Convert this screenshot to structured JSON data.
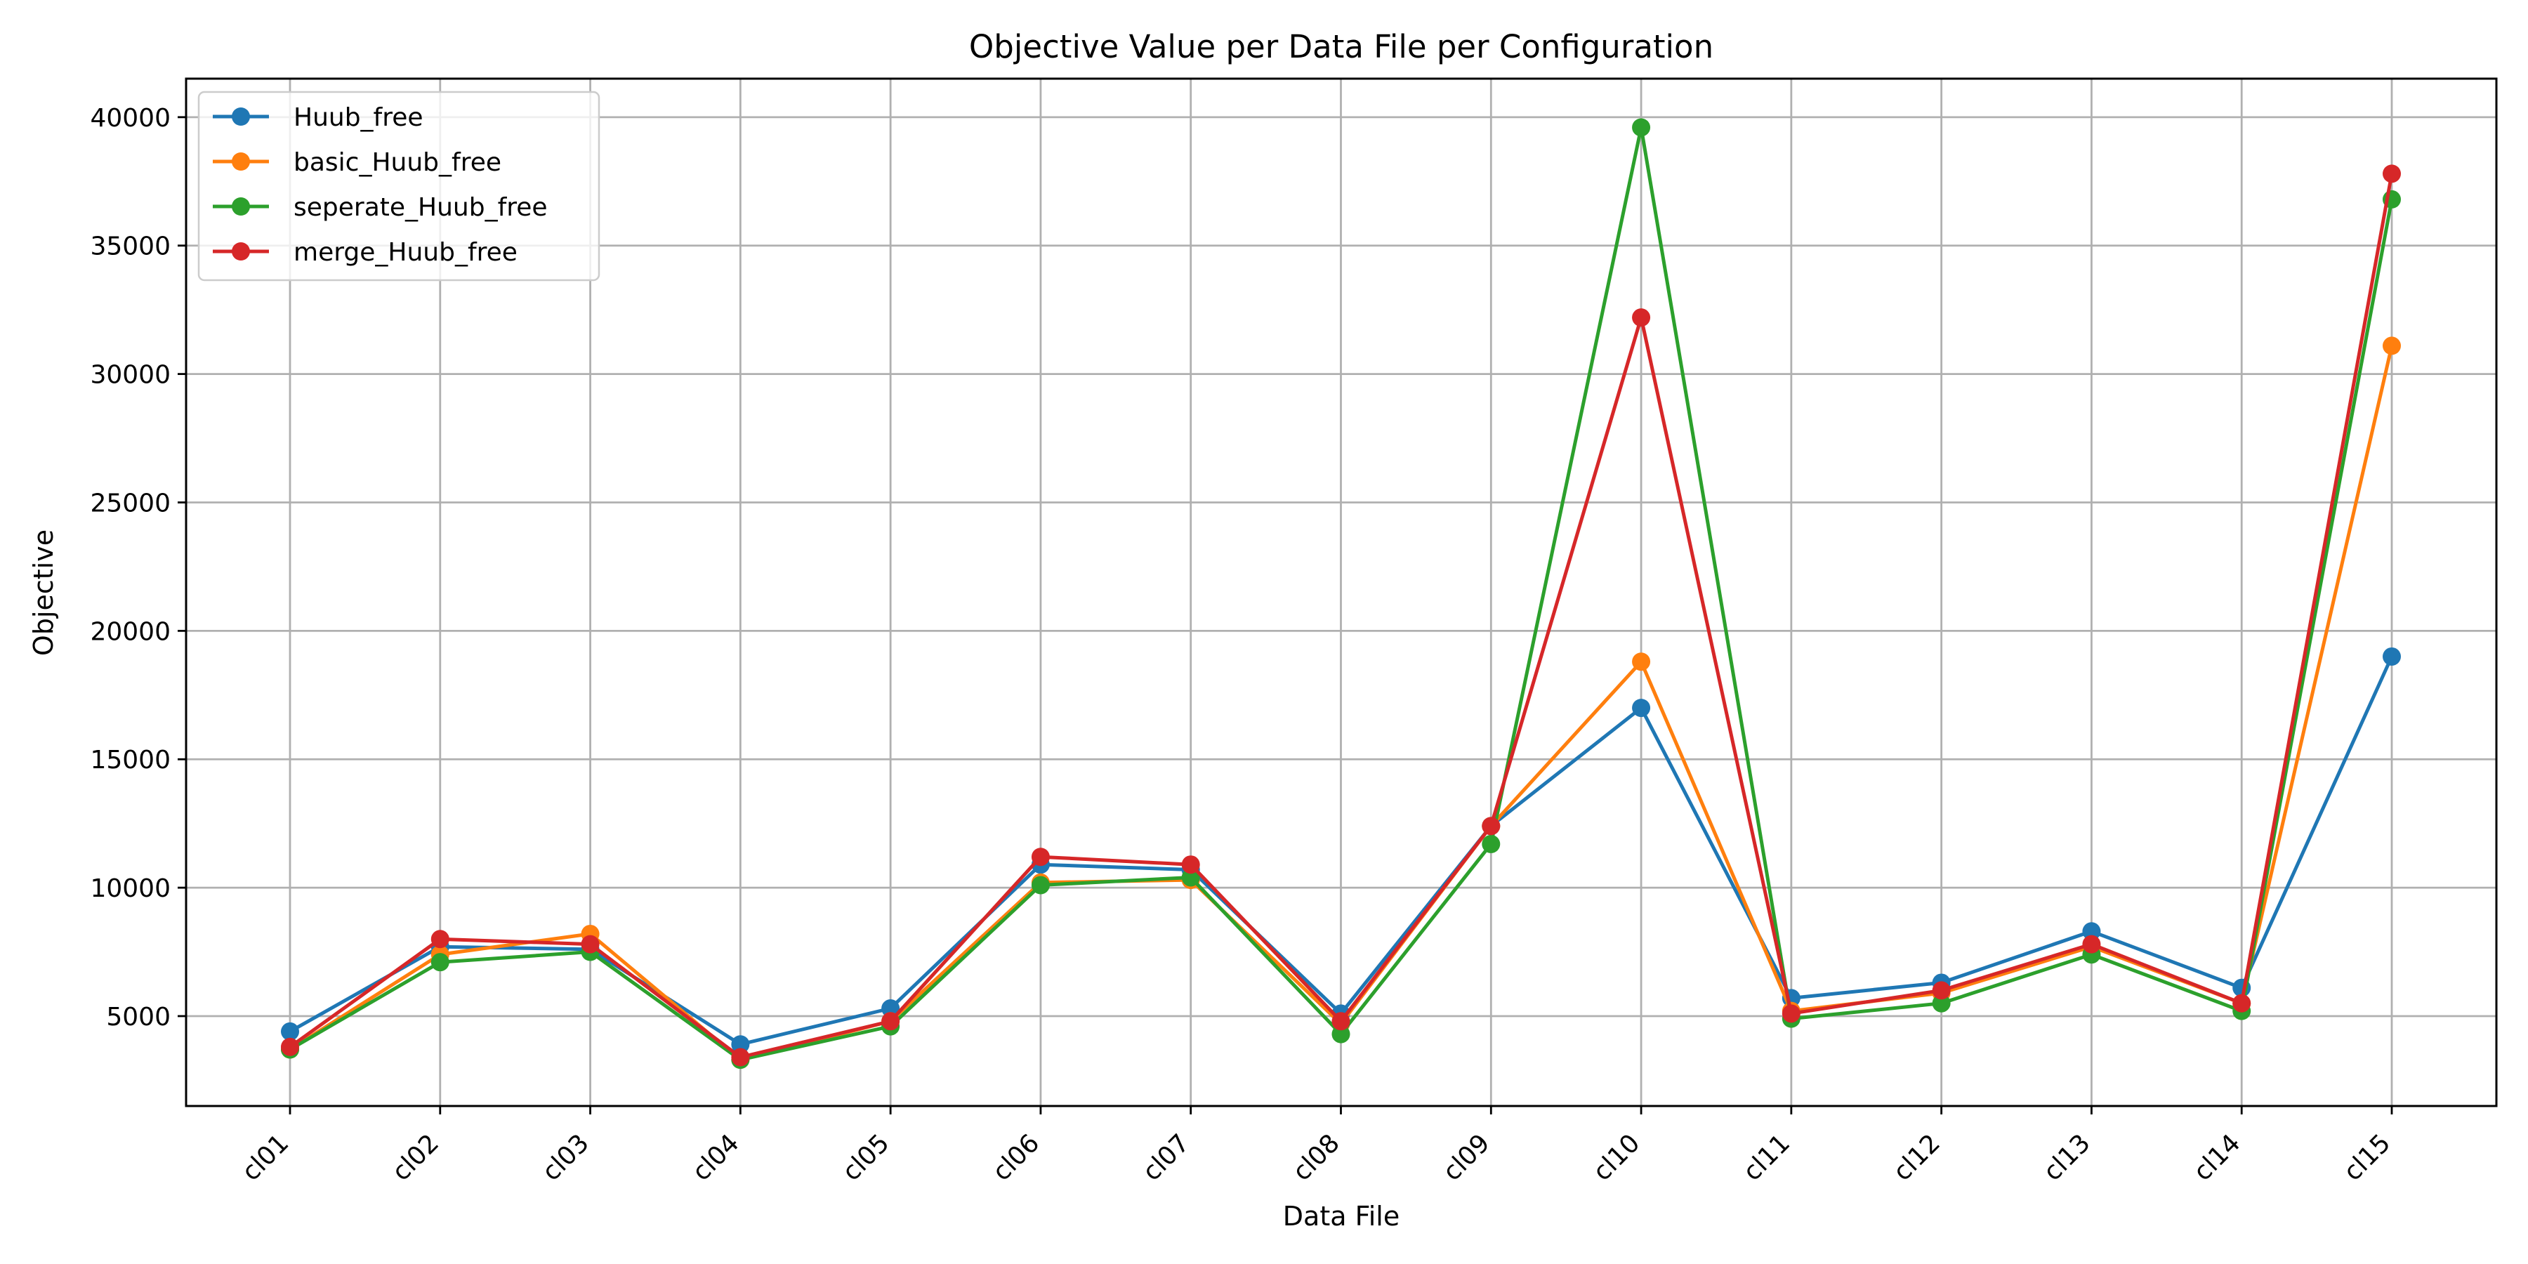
{
  "chart_data": {
    "type": "line",
    "title": "Objective Value per Data File per Configuration",
    "xlabel": "Data File",
    "ylabel": "Objective",
    "categories": [
      "cl01",
      "cl02",
      "cl03",
      "cl04",
      "cl05",
      "cl06",
      "cl07",
      "cl08",
      "cl09",
      "cl10",
      "cl11",
      "cl12",
      "cl13",
      "cl14",
      "cl15"
    ],
    "yticks": [
      5000,
      10000,
      15000,
      20000,
      25000,
      30000,
      35000,
      40000
    ],
    "ylim": [
      1500,
      41500
    ],
    "grid": true,
    "legend_position": "top-left",
    "series": [
      {
        "name": "Huub_free",
        "color": "#1f77b4",
        "values": [
          4400,
          7700,
          7600,
          3900,
          5300,
          10900,
          10700,
          5100,
          12400,
          17000,
          5700,
          6300,
          8300,
          6100,
          19000
        ]
      },
      {
        "name": "basic_Huub_free",
        "color": "#ff7f0e",
        "values": [
          3700,
          7400,
          8200,
          3300,
          4800,
          10200,
          10300,
          4700,
          12400,
          18800,
          5200,
          5900,
          7700,
          5500,
          31100
        ]
      },
      {
        "name": "seperate_Huub_free",
        "color": "#2ca02c",
        "values": [
          3700,
          7100,
          7500,
          3300,
          4600,
          10100,
          10400,
          4300,
          11700,
          39600,
          4900,
          5500,
          7400,
          5200,
          36800
        ]
      },
      {
        "name": "merge_Huub_free",
        "color": "#d62728",
        "values": [
          3800,
          8000,
          7800,
          3400,
          4800,
          11200,
          10900,
          4800,
          12400,
          32200,
          5100,
          6000,
          7800,
          5500,
          37800
        ]
      }
    ]
  }
}
